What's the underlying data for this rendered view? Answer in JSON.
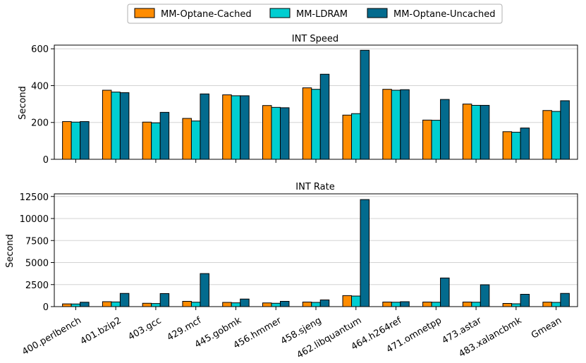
{
  "colors": {
    "series": [
      "#ff8c00",
      "#00ced1",
      "#036b8e"
    ],
    "grid": "#d3d3d3",
    "bar_edge": "#000000"
  },
  "legend": {
    "location": "top-center",
    "entries": [
      "MM-Optane-Cached",
      "MM-LDRAM",
      "MM-Optane-Uncached"
    ]
  },
  "chart_data": [
    {
      "type": "bar",
      "title": "INT Speed",
      "xlabel": "",
      "ylabel": "Second",
      "ylim": [
        0,
        620
      ],
      "yticks": [
        0,
        200,
        400,
        600
      ],
      "ytick_labels": [
        "0",
        "200",
        "400",
        "600"
      ],
      "grid": true,
      "categories": [
        "400.perlbench",
        "401.bzip2",
        "403.gcc",
        "429.mcf",
        "445.gobmk",
        "456.hmmer",
        "458.sjeng",
        "462.libquantum",
        "464.h264ref",
        "471.omnetpp",
        "473.astar",
        "483.xalancbmk",
        "Gmean"
      ],
      "series": [
        {
          "name": "MM-Optane-Cached",
          "values": [
            205,
            375,
            202,
            222,
            350,
            292,
            388,
            240,
            380,
            213,
            300,
            150,
            265
          ]
        },
        {
          "name": "MM-LDRAM",
          "values": [
            202,
            365,
            198,
            208,
            345,
            282,
            380,
            248,
            375,
            212,
            293,
            147,
            260
          ]
        },
        {
          "name": "MM-Optane-Uncached",
          "values": [
            205,
            362,
            255,
            355,
            345,
            280,
            462,
            592,
            378,
            325,
            293,
            170,
            318
          ]
        }
      ]
    },
    {
      "type": "bar",
      "title": "INT Rate",
      "xlabel": "",
      "ylabel": "Second",
      "ylim": [
        0,
        12800
      ],
      "yticks": [
        0,
        2500,
        5000,
        7500,
        10000,
        12500
      ],
      "ytick_labels": [
        "0",
        "2500",
        "5000",
        "7500",
        "10000",
        "12500"
      ],
      "grid": true,
      "categories": [
        "400.perlbench",
        "401.bzip2",
        "403.gcc",
        "429.mcf",
        "445.gobmk",
        "456.hmmer",
        "458.sjeng",
        "462.libquantum",
        "464.h264ref",
        "471.omnetpp",
        "473.astar",
        "483.xalancbmk",
        "Gmean"
      ],
      "series": [
        {
          "name": "MM-Optane-Cached",
          "values": [
            310,
            560,
            380,
            600,
            480,
            420,
            520,
            1250,
            520,
            520,
            520,
            360,
            510
          ]
        },
        {
          "name": "MM-LDRAM",
          "values": [
            300,
            530,
            350,
            500,
            430,
            380,
            480,
            1200,
            500,
            500,
            500,
            320,
            480
          ]
        },
        {
          "name": "MM-Optane-Uncached",
          "values": [
            500,
            1500,
            1480,
            3750,
            860,
            600,
            760,
            12150,
            560,
            3250,
            2480,
            1400,
            1500
          ]
        }
      ]
    }
  ]
}
